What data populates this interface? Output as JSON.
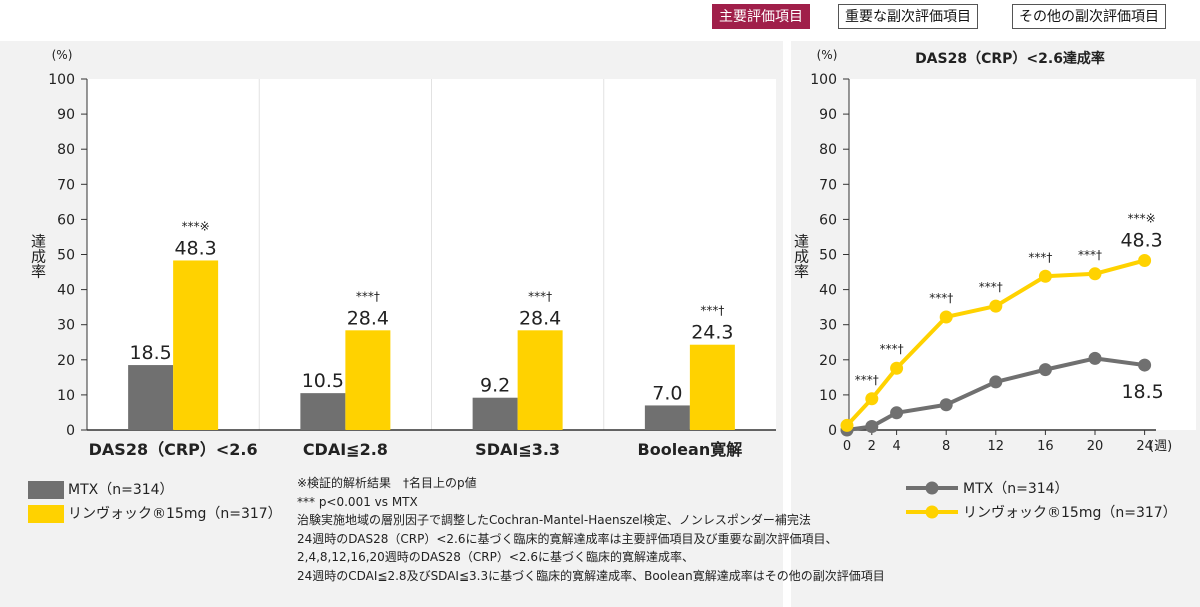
{
  "tabs": [
    {
      "label": "主要評価項目",
      "active": true
    },
    {
      "label": "重要な副次評価項目",
      "active": false
    },
    {
      "label": "その他の副次評価項目",
      "active": false
    }
  ],
  "colors": {
    "mtx": "#707070",
    "rinvoq": "#ffd200",
    "active_tab": "#a01f4a",
    "panel_bg": "#f2f2f2"
  },
  "left_chart": {
    "unit": "(%)",
    "ylabel": "達成率",
    "legend": {
      "mtx": "MTX（n=314）",
      "rinvoq": "リンヴォック®15mg（n=317）"
    }
  },
  "right_chart": {
    "unit": "(%)",
    "title": "DAS28（CRP）<2.6達成率",
    "ylabel": "達成率",
    "xunit": "(週)",
    "legend": {
      "mtx": "MTX（n=314）",
      "rinvoq": "リンヴォック®15mg（n=317）"
    }
  },
  "notes": [
    "※検証的解析結果　†名目上のp値",
    "*** p<0.001 vs MTX",
    "治験実施地域の層別因子で調整したCochran-Mantel-Haenszel検定、ノンレスポンダー補完法",
    "24週時のDAS28（CRP）<2.6に基づく臨床的寛解達成率は主要評価項目及び重要な副次評価項目、",
    "2,4,8,12,16,20週時のDAS28（CRP）<2.6に基づく臨床的寛解達成率、",
    "24週時のCDAI≦2.8及びSDAI≦3.3に基づく臨床的寛解達成率、Boolean寛解達成率はその他の副次評価項目"
  ],
  "chart_data": [
    {
      "type": "bar",
      "categories": [
        "DAS28（CRP）<2.6",
        "CDAI≦2.8",
        "SDAI≦3.3",
        "Boolean寛解"
      ],
      "series": [
        {
          "name": "MTX（n=314）",
          "values": [
            18.5,
            10.5,
            9.2,
            7.0
          ]
        },
        {
          "name": "リンヴォック®15mg（n=317）",
          "values": [
            48.3,
            28.4,
            28.4,
            24.3
          ]
        }
      ],
      "value_labels": {
        "mtx": [
          "18.5",
          "10.5",
          "9.2",
          "7.0"
        ],
        "rinvoq": [
          "48.3",
          "28.4",
          "28.4",
          "24.3"
        ]
      },
      "significance": [
        "***※",
        "***†",
        "***†",
        "***†"
      ],
      "ylim": [
        0,
        100
      ],
      "yticks": [
        0,
        10,
        20,
        30,
        40,
        50,
        60,
        70,
        80,
        90,
        100
      ],
      "ylabel": "達成率",
      "grid": false
    },
    {
      "type": "line",
      "title": "DAS28（CRP）<2.6達成率",
      "x": [
        0,
        2,
        4,
        8,
        12,
        16,
        20,
        24
      ],
      "xtick_labels": [
        "0",
        "2",
        "4",
        "8",
        "12",
        "16",
        "20",
        "24"
      ],
      "series": [
        {
          "name": "MTX（n=314）",
          "values": [
            0,
            1,
            4.9,
            7.2,
            13.7,
            17.2,
            20.4,
            18.5
          ]
        },
        {
          "name": "リンヴォック®15mg（n=317）",
          "values": [
            1.3,
            8.9,
            17.6,
            32.2,
            35.3,
            43.8,
            44.5,
            48.3
          ]
        }
      ],
      "value_labels": {
        "mtx_last": "18.5",
        "rinvoq_last": "48.3"
      },
      "significance": [
        "",
        "***†",
        "***†",
        "***†",
        "***†",
        "***†",
        "***†",
        "***※"
      ],
      "ylim": [
        0,
        100
      ],
      "yticks": [
        0,
        10,
        20,
        30,
        40,
        50,
        60,
        70,
        80,
        90,
        100
      ],
      "ylabel": "達成率",
      "xunit": "(週)",
      "grid": false
    }
  ]
}
